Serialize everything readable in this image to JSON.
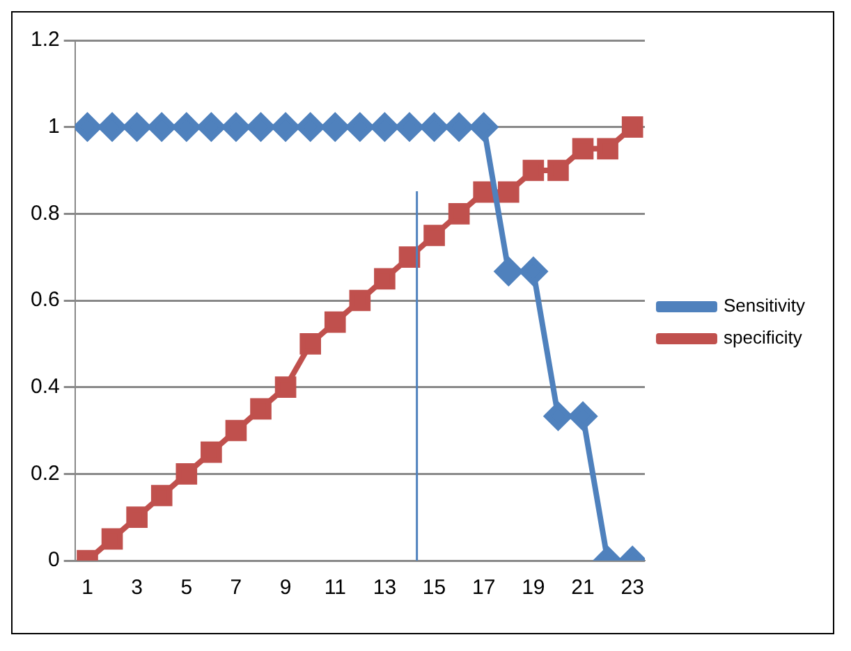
{
  "chart_data": {
    "type": "line",
    "x": [
      1,
      2,
      3,
      4,
      5,
      6,
      7,
      8,
      9,
      10,
      11,
      12,
      13,
      14,
      15,
      16,
      17,
      18,
      19,
      20,
      21,
      22,
      23
    ],
    "series": [
      {
        "name": "Sensitivity",
        "color": "#4f81bd",
        "marker": "diamond",
        "values": [
          1,
          1,
          1,
          1,
          1,
          1,
          1,
          1,
          1,
          1,
          1,
          1,
          1,
          1,
          1,
          1,
          1,
          0.667,
          0.667,
          0.333,
          0.333,
          0,
          0
        ]
      },
      {
        "name": "specificity",
        "color": "#c0504d",
        "marker": "square",
        "values": [
          0,
          0.05,
          0.1,
          0.15,
          0.2,
          0.25,
          0.3,
          0.35,
          0.4,
          0.5,
          0.55,
          0.6,
          0.65,
          0.7,
          0.75,
          0.8,
          0.85,
          0.85,
          0.9,
          0.9,
          0.95,
          0.95,
          1
        ]
      }
    ],
    "xlim": [
      0.5,
      23.5
    ],
    "xticks": [
      1,
      3,
      5,
      7,
      9,
      11,
      13,
      15,
      17,
      19,
      21,
      23
    ],
    "ylim": [
      0,
      1.2
    ],
    "yticks": [
      0,
      0.2,
      0.4,
      0.6,
      0.8,
      1,
      1.2
    ],
    "ref_lines": [
      {
        "axis": "x",
        "value": 14.3,
        "color": "#4f81bd"
      }
    ],
    "grid": "y",
    "legend": "right",
    "line_style": "solid"
  }
}
